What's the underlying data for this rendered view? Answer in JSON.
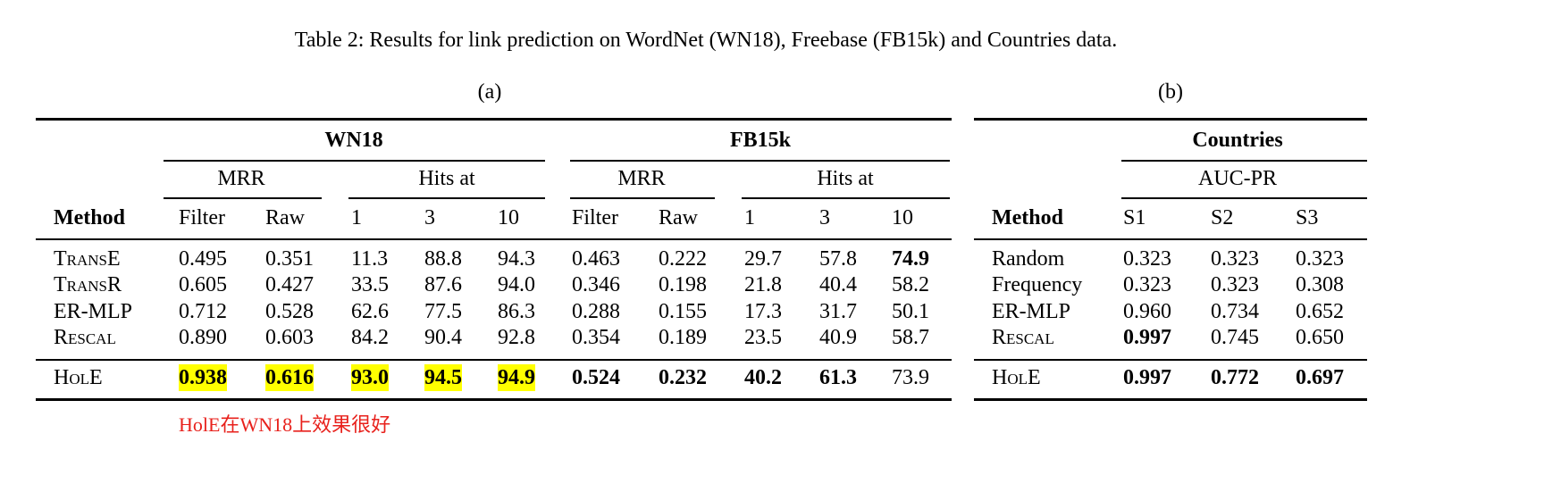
{
  "caption": "Table 2: Results for link prediction on WordNet (WN18), Freebase (FB15k) and Countries data.",
  "table_a": {
    "label": "(a)",
    "groups": [
      "WN18",
      "FB15k"
    ],
    "subgroups": [
      "MRR",
      "Hits at",
      "MRR",
      "Hits at"
    ],
    "columns": [
      "Method",
      "Filter",
      "Raw",
      "1",
      "3",
      "10",
      "Filter",
      "Raw",
      "1",
      "3",
      "10"
    ],
    "rows": [
      [
        "TransE",
        "0.495",
        "0.351",
        "11.3",
        "88.8",
        "94.3",
        "0.463",
        "0.222",
        "29.7",
        "57.8",
        "74.9"
      ],
      [
        "TransR",
        "0.605",
        "0.427",
        "33.5",
        "87.6",
        "94.0",
        "0.346",
        "0.198",
        "21.8",
        "40.4",
        "58.2"
      ],
      [
        "ER-MLP",
        "0.712",
        "0.528",
        "62.6",
        "77.5",
        "86.3",
        "0.288",
        "0.155",
        "17.3",
        "31.7",
        "50.1"
      ],
      [
        "Rescal",
        "0.890",
        "0.603",
        "84.2",
        "90.4",
        "92.8",
        "0.354",
        "0.189",
        "23.5",
        "40.9",
        "58.7"
      ],
      [
        "HolE",
        "0.938",
        "0.616",
        "93.0",
        "94.5",
        "94.9",
        "0.524",
        "0.232",
        "40.2",
        "61.3",
        "73.9"
      ]
    ]
  },
  "table_b": {
    "label": "(b)",
    "group": "Countries",
    "subgroup": "AUC-PR",
    "columns": [
      "Method",
      "S1",
      "S2",
      "S3"
    ],
    "rows": [
      [
        "Random",
        "0.323",
        "0.323",
        "0.323"
      ],
      [
        "Frequency",
        "0.323",
        "0.323",
        "0.308"
      ],
      [
        "ER-MLP",
        "0.960",
        "0.734",
        "0.652"
      ],
      [
        "Rescal",
        "0.997",
        "0.745",
        "0.650"
      ],
      [
        "HolE",
        "0.997",
        "0.772",
        "0.697"
      ]
    ]
  },
  "annotation": "HolE在WN18上效果很好"
}
